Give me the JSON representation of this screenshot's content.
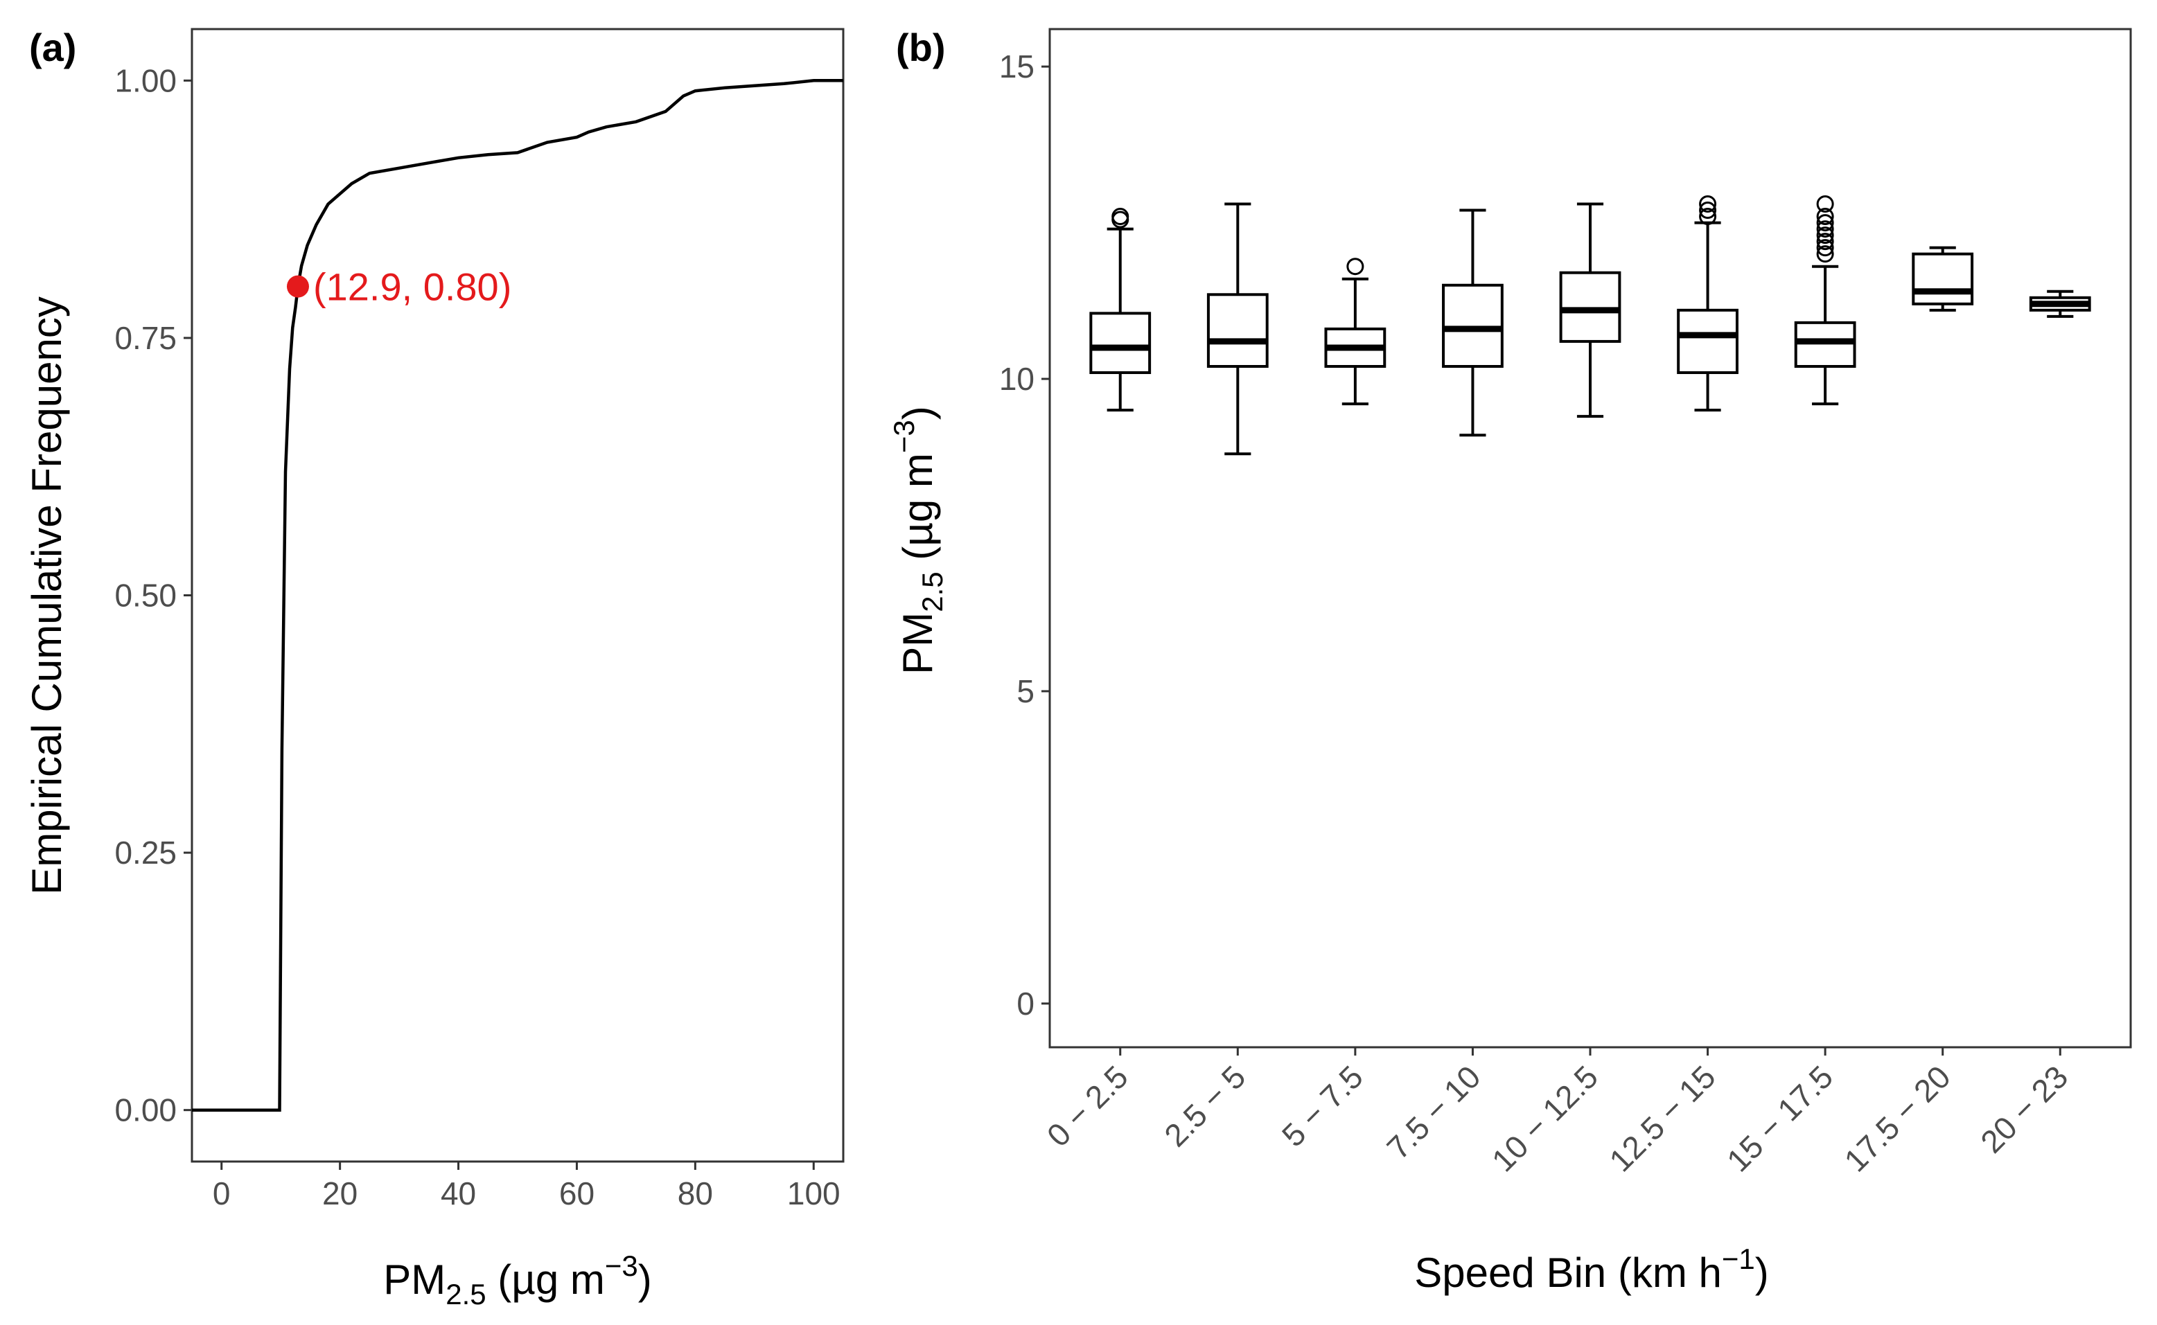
{
  "colors": {
    "line": "#000000",
    "highlight": "#e41a1c",
    "tick_text": "#4d4d4d",
    "frame": "#333333"
  },
  "chart_data": [
    {
      "type": "line",
      "panel": "(a)",
      "title": "",
      "xlabel": {
        "main": "PM",
        "sub": "2.5",
        "unit_open": " (µg m",
        "sup": "−3",
        "unit_close": ")"
      },
      "ylabel": "Empirical Cumulative Frequency",
      "xlim": [
        -5,
        105
      ],
      "ylim": [
        -0.05,
        1.05
      ],
      "xticks": [
        0,
        20,
        40,
        60,
        80,
        100
      ],
      "xtick_labels": [
        "0",
        "20",
        "40",
        "60",
        "80",
        "100"
      ],
      "yticks": [
        0,
        0.25,
        0.5,
        0.75,
        1.0
      ],
      "ytick_labels": [
        "0.00",
        "0.25",
        "0.50",
        "0.75",
        "1.00"
      ],
      "series": [
        {
          "name": "ECDF",
          "x": [
            -5,
            9.8,
            10.2,
            10.8,
            11.5,
            12.0,
            12.5,
            12.9,
            13.5,
            14.5,
            16,
            18,
            20,
            22,
            25,
            30,
            35,
            40,
            45,
            50,
            55,
            60,
            62,
            65,
            70,
            75,
            78,
            80,
            85,
            90,
            95,
            100,
            105
          ],
          "y": [
            0,
            0,
            0.35,
            0.62,
            0.72,
            0.76,
            0.78,
            0.8,
            0.82,
            0.84,
            0.86,
            0.88,
            0.89,
            0.9,
            0.91,
            0.915,
            0.92,
            0.925,
            0.928,
            0.93,
            0.94,
            0.945,
            0.95,
            0.955,
            0.96,
            0.97,
            0.985,
            0.99,
            0.993,
            0.995,
            0.997,
            1.0,
            1.0
          ]
        }
      ],
      "annotation": {
        "x": 12.9,
        "y": 0.8,
        "text": "(12.9, 0.80)"
      }
    },
    {
      "type": "box",
      "panel": "(b)",
      "title": "",
      "xlabel": {
        "main": "Speed Bin (km h",
        "sup": "−1",
        "close": ")"
      },
      "ylabel": {
        "main": "PM",
        "sub": "2.5",
        "unit_open": " (µg m",
        "sup": "−3",
        "unit_close": ")"
      },
      "ylim": [
        -0.7,
        15.6
      ],
      "yticks": [
        0,
        5,
        10,
        15
      ],
      "ytick_labels": [
        "0",
        "5",
        "10",
        "15"
      ],
      "categories": [
        "0 − 2.5",
        "2.5 − 5",
        "5 − 7.5",
        "7.5 − 10",
        "10 − 12.5",
        "12.5 − 15",
        "15 − 17.5",
        "17.5 − 20",
        "20 − 23"
      ],
      "boxes": [
        {
          "min": 9.5,
          "q1": 10.1,
          "median": 10.5,
          "q3": 11.05,
          "max": 12.4,
          "outliers": [
            12.55,
            12.6
          ]
        },
        {
          "min": 8.8,
          "q1": 10.2,
          "median": 10.6,
          "q3": 11.35,
          "max": 12.8,
          "outliers": []
        },
        {
          "min": 9.6,
          "q1": 10.2,
          "median": 10.5,
          "q3": 10.8,
          "max": 11.6,
          "outliers": [
            11.8
          ]
        },
        {
          "min": 9.1,
          "q1": 10.2,
          "median": 10.8,
          "q3": 11.5,
          "max": 12.7,
          "outliers": []
        },
        {
          "min": 9.4,
          "q1": 10.6,
          "median": 11.1,
          "q3": 11.7,
          "max": 12.8,
          "outliers": []
        },
        {
          "min": 9.5,
          "q1": 10.1,
          "median": 10.7,
          "q3": 11.1,
          "max": 12.5,
          "outliers": [
            12.6,
            12.7,
            12.8
          ]
        },
        {
          "min": 9.6,
          "q1": 10.2,
          "median": 10.6,
          "q3": 10.9,
          "max": 11.8,
          "outliers": [
            12.0,
            12.1,
            12.2,
            12.3,
            12.4,
            12.5,
            12.6,
            12.8
          ]
        },
        {
          "min": 11.1,
          "q1": 11.2,
          "median": 11.4,
          "q3": 12.0,
          "max": 12.1,
          "outliers": []
        },
        {
          "min": 11.0,
          "q1": 11.1,
          "median": 11.2,
          "q3": 11.3,
          "max": 11.4,
          "outliers": []
        }
      ]
    }
  ]
}
